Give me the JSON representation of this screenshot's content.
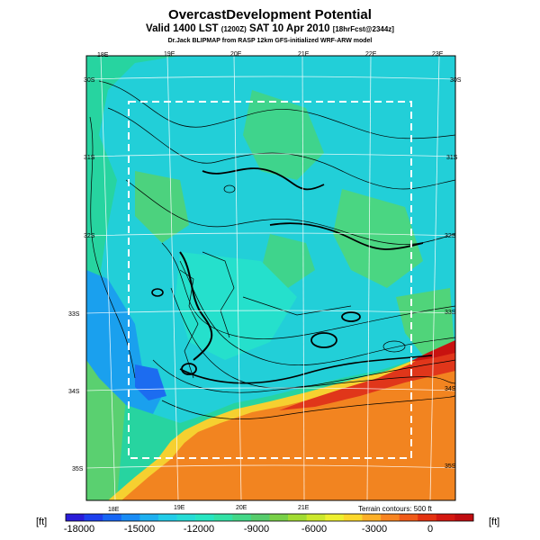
{
  "header": {
    "title": "OvercastDevelopment Potential",
    "subtitle_main": "Valid 1400 LST",
    "subtitle_small1": "(1200Z)",
    "subtitle_date": "SAT 10 Apr 2010",
    "subtitle_small2": "[18hrFcst@2344z]",
    "credit": "Dr.Jack BLIPMAP from RASP 12km GFS-initialized WRF-ARW model"
  },
  "map": {
    "lon_labels_top": [
      "18E",
      "19E",
      "20E",
      "21E",
      "22E",
      "23E"
    ],
    "lon_labels_bottom": [
      "18E",
      "19E",
      "20E",
      "21E"
    ],
    "lat_labels_left": [
      "30S",
      "31S",
      "32S",
      "33S",
      "34S",
      "35S"
    ],
    "lat_labels_right": [
      "30S",
      "31S",
      "32S",
      "33S",
      "34S",
      "35S"
    ]
  },
  "legend": {
    "unit_left": "[ft]",
    "unit_right": "[ft]",
    "terrain_note": "Terrain contours: 500 ft",
    "tick_labels": [
      "-18000",
      "-15000",
      "-12000",
      "-9000",
      "-6000",
      "-3000",
      "0"
    ],
    "colors": [
      "#2a1cd8",
      "#1d40ee",
      "#1766f5",
      "#1a8cf5",
      "#1eb0f0",
      "#22cce8",
      "#25dcd6",
      "#27e6c2",
      "#33e2a6",
      "#43d888",
      "#56cc6c",
      "#78d048",
      "#a2dc32",
      "#cce82c",
      "#eef030",
      "#fcd82c",
      "#fcb028",
      "#f88420",
      "#f05a18",
      "#e43210",
      "#d41810",
      "#c00c10"
    ]
  }
}
